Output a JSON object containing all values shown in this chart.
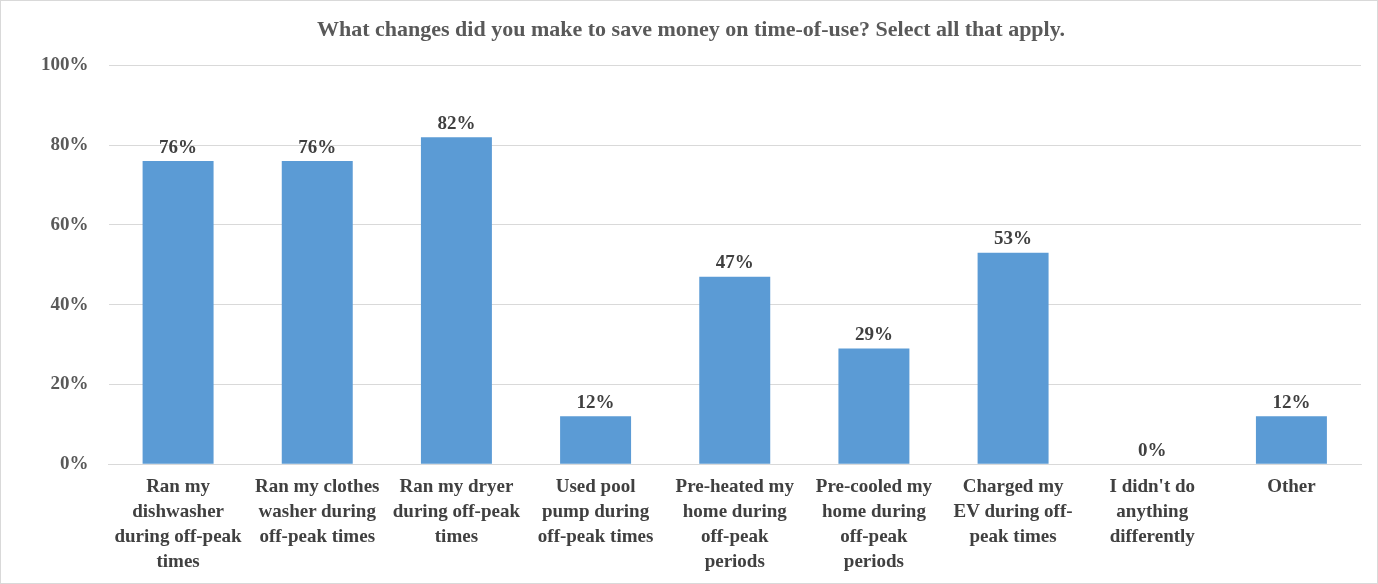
{
  "chart_data": {
    "type": "bar",
    "title": "What changes did you make to save money on time-of-use? Select all that apply.",
    "categories": [
      "Ran my dishwasher during off-peak times",
      "Ran my clothes washer during off-peak times",
      "Ran my dryer during off-peak times",
      "Used pool pump during off-peak times",
      "Pre-heated my home during off-peak periods",
      "Pre-cooled my home during off-peak periods",
      "Charged my EV during off-peak times",
      "I didn't do anything differently",
      "Other"
    ],
    "values": [
      76,
      76,
      82,
      12,
      47,
      29,
      53,
      0,
      12
    ],
    "value_labels": [
      "76%",
      "76%",
      "82%",
      "12%",
      "47%",
      "29%",
      "53%",
      "0%",
      "12%"
    ],
    "color": "#5b9bd5",
    "ylim": [
      0,
      100
    ],
    "yticks": [
      {
        "value": 0,
        "label": "0%"
      },
      {
        "value": 20,
        "label": "20%"
      },
      {
        "value": 40,
        "label": "40%"
      },
      {
        "value": 60,
        "label": "60%"
      },
      {
        "value": 80,
        "label": "80%"
      },
      {
        "value": 100,
        "label": "100%"
      }
    ],
    "grid": "y",
    "legend": false
  }
}
